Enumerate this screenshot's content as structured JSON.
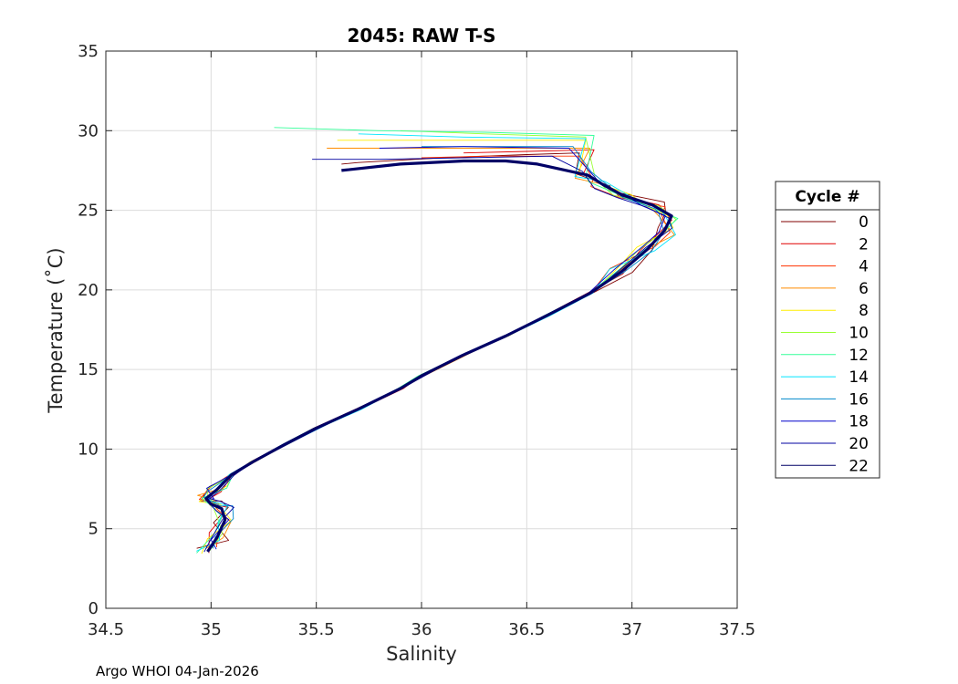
{
  "chart_data": {
    "type": "line",
    "title": "2045: RAW T-S",
    "xlabel": "Salinity",
    "ylabel": "Temperature (˚C)",
    "xlim": [
      34.5,
      37.5
    ],
    "ylim": [
      0,
      35
    ],
    "xticks": [
      34.5,
      35,
      35.5,
      36,
      36.5,
      37,
      37.5
    ],
    "xtick_labels": [
      "34.5",
      "35",
      "35.5",
      "36",
      "36.5",
      "37",
      "37.5"
    ],
    "yticks": [
      0,
      5,
      10,
      15,
      20,
      25,
      30,
      35
    ],
    "ytick_labels": [
      "0",
      "5",
      "10",
      "15",
      "20",
      "25",
      "30",
      "35"
    ],
    "grid": true,
    "legend_title": "Cycle #",
    "legend_position": "outside-right",
    "footer": "Argo WHOI 04-Jan-2026",
    "series": [
      {
        "name": "0",
        "color": "#800000",
        "points": [
          [
            36.75,
            28.6
          ],
          [
            36.5,
            28.5
          ],
          [
            36.1,
            28.3
          ],
          [
            35.7,
            28.0
          ],
          [
            35.62,
            27.9
          ]
        ]
      },
      {
        "name": "2",
        "color": "#e00000",
        "points": [
          [
            36.82,
            28.8
          ],
          [
            36.5,
            28.7
          ],
          [
            36.2,
            28.6
          ]
        ]
      },
      {
        "name": "4",
        "color": "#ff3300",
        "points": [
          [
            36.75,
            28.4
          ],
          [
            36.3,
            28.4
          ],
          [
            36.0,
            28.3
          ]
        ]
      },
      {
        "name": "6",
        "color": "#ff8c00",
        "points": [
          [
            36.8,
            28.9
          ],
          [
            36.3,
            28.9
          ],
          [
            35.55,
            28.9
          ]
        ]
      },
      {
        "name": "8",
        "color": "#ffee00",
        "points": [
          [
            36.78,
            29.4
          ],
          [
            36.3,
            29.4
          ],
          [
            35.6,
            29.4
          ]
        ]
      },
      {
        "name": "10",
        "color": "#99ff33",
        "points": [
          [
            36.78,
            29.6
          ],
          [
            36.3,
            29.8
          ],
          [
            35.9,
            30.0
          ]
        ]
      },
      {
        "name": "12",
        "color": "#33ff99",
        "points": [
          [
            36.82,
            29.7
          ],
          [
            36.3,
            29.9
          ],
          [
            35.8,
            30.0
          ],
          [
            35.3,
            30.2
          ]
        ]
      },
      {
        "name": "14",
        "color": "#00e5ff",
        "points": [
          [
            36.78,
            29.5
          ],
          [
            36.2,
            29.6
          ],
          [
            35.7,
            29.8
          ]
        ]
      },
      {
        "name": "16",
        "color": "#0088cc",
        "points": [
          [
            36.72,
            29.0
          ],
          [
            36.3,
            29.0
          ],
          [
            36.0,
            29.0
          ]
        ]
      },
      {
        "name": "18",
        "color": "#0000cc",
        "points": [
          [
            36.7,
            28.9
          ],
          [
            36.2,
            29.0
          ],
          [
            35.8,
            28.9
          ]
        ]
      },
      {
        "name": "20",
        "color": "#0000a0",
        "points": [
          [
            36.62,
            28.4
          ],
          [
            36.2,
            28.3
          ],
          [
            35.8,
            28.2
          ],
          [
            35.48,
            28.2
          ]
        ]
      },
      {
        "name": "22",
        "color": "#000066",
        "points": [
          [
            36.55,
            27.9
          ],
          [
            36.4,
            28.1
          ],
          [
            36.2,
            28.1
          ],
          [
            35.9,
            27.9
          ],
          [
            35.62,
            27.5
          ]
        ]
      }
    ]
  }
}
